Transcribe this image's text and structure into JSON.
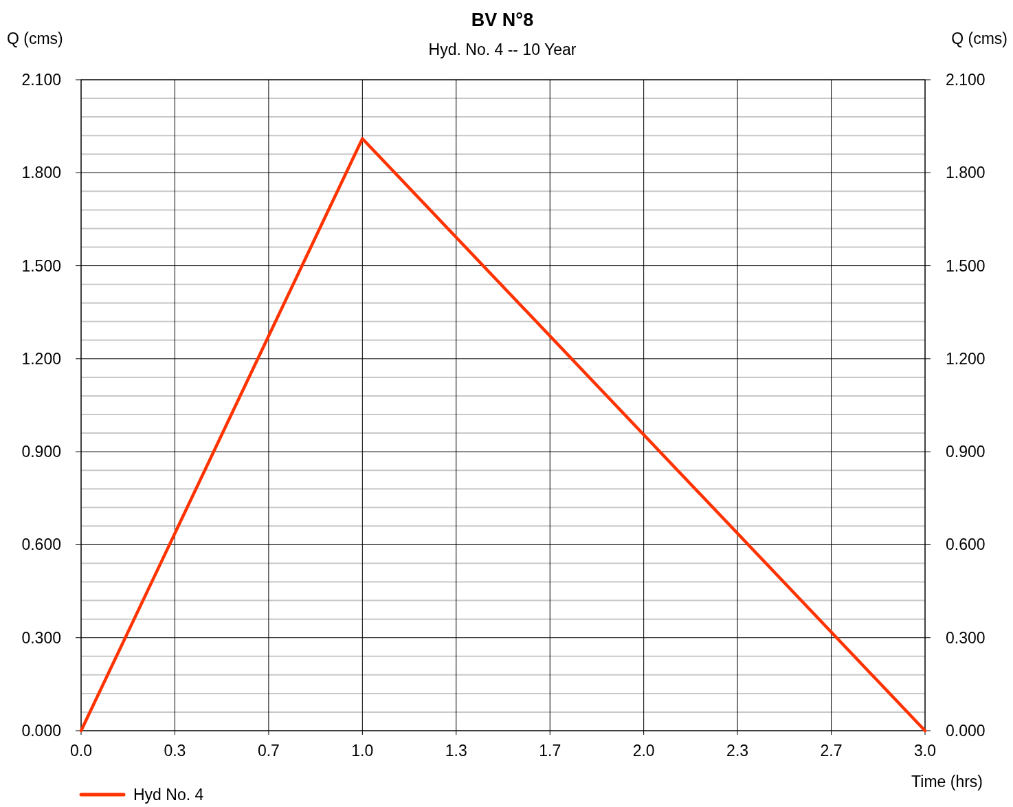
{
  "chart_data": {
    "type": "line",
    "title": "BV N°8",
    "subtitle": "Hyd. No. 4 -- 10 Year",
    "xlabel": "Time (hrs)",
    "ylabel": "Q (cms)",
    "y2label": "Q (cms)",
    "x": [
      0,
      1,
      3
    ],
    "series": [
      {
        "name": "Hyd No. 4",
        "color": "#ff3300",
        "values": [
          0,
          1.91,
          0
        ]
      }
    ],
    "xlim": [
      0,
      3
    ],
    "xticks": [
      {
        "value": 0,
        "label": "0.0"
      },
      {
        "value": 0.3333,
        "label": "0.3"
      },
      {
        "value": 0.6667,
        "label": "0.7"
      },
      {
        "value": 1,
        "label": "1.0"
      },
      {
        "value": 1.3333,
        "label": "1.3"
      },
      {
        "value": 1.6667,
        "label": "1.7"
      },
      {
        "value": 2,
        "label": "2.0"
      },
      {
        "value": 2.3333,
        "label": "2.3"
      },
      {
        "value": 2.6667,
        "label": "2.7"
      },
      {
        "value": 3,
        "label": "3.0"
      }
    ],
    "ylim": [
      0,
      2.1
    ],
    "yticks": [
      {
        "value": 0,
        "label": "0.000"
      },
      {
        "value": 0.06,
        "label": null
      },
      {
        "value": 0.12,
        "label": null
      },
      {
        "value": 0.18,
        "label": null
      },
      {
        "value": 0.24,
        "label": null
      },
      {
        "value": 0.3,
        "label": "0.300"
      },
      {
        "value": 0.36,
        "label": null
      },
      {
        "value": 0.42,
        "label": null
      },
      {
        "value": 0.48,
        "label": null
      },
      {
        "value": 0.54,
        "label": null
      },
      {
        "value": 0.6,
        "label": "0.600"
      },
      {
        "value": 0.66,
        "label": null
      },
      {
        "value": 0.72,
        "label": null
      },
      {
        "value": 0.78,
        "label": null
      },
      {
        "value": 0.84,
        "label": null
      },
      {
        "value": 0.9,
        "label": "0.900"
      },
      {
        "value": 0.96,
        "label": null
      },
      {
        "value": 1.02,
        "label": null
      },
      {
        "value": 1.08,
        "label": null
      },
      {
        "value": 1.14,
        "label": null
      },
      {
        "value": 1.2,
        "label": "1.200"
      },
      {
        "value": 1.26,
        "label": null
      },
      {
        "value": 1.32,
        "label": null
      },
      {
        "value": 1.38,
        "label": null
      },
      {
        "value": 1.44,
        "label": null
      },
      {
        "value": 1.5,
        "label": "1.500"
      },
      {
        "value": 1.56,
        "label": null
      },
      {
        "value": 1.62,
        "label": null
      },
      {
        "value": 1.68,
        "label": null
      },
      {
        "value": 1.74,
        "label": null
      },
      {
        "value": 1.8,
        "label": "1.800"
      },
      {
        "value": 1.86,
        "label": null
      },
      {
        "value": 1.92,
        "label": null
      },
      {
        "value": 1.98,
        "label": null
      },
      {
        "value": 2.04,
        "label": null
      },
      {
        "value": 2.1,
        "label": "2.100"
      }
    ],
    "y2lim": [
      0,
      2.1
    ],
    "y2ticks": [
      {
        "value": 0,
        "label": "0.000"
      },
      {
        "value": 0.3,
        "label": "0.300"
      },
      {
        "value": 0.6,
        "label": "0.600"
      },
      {
        "value": 0.9,
        "label": "0.900"
      },
      {
        "value": 1.2,
        "label": "1.200"
      },
      {
        "value": 1.5,
        "label": "1.500"
      },
      {
        "value": 1.8,
        "label": "1.800"
      },
      {
        "value": 2.1,
        "label": "2.100"
      }
    ],
    "grid": true,
    "legend": "bottom left",
    "marker": "none",
    "line_style": "solid"
  }
}
